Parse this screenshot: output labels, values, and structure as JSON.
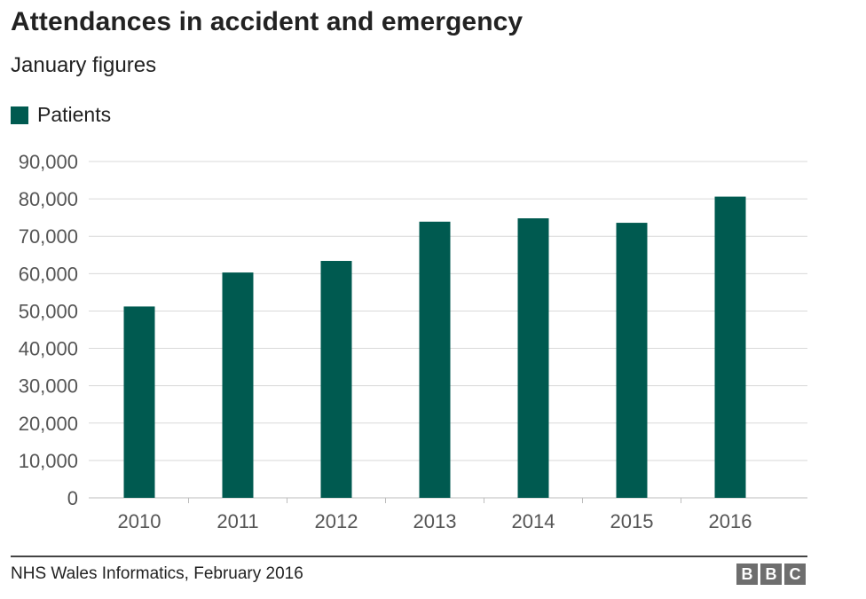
{
  "header": {
    "title": "Attendances in accident and emergency",
    "subtitle": "January figures"
  },
  "footer": {
    "source": "NHS Wales Informatics, February 2016",
    "logo_letters": [
      "B",
      "B",
      "C"
    ]
  },
  "colors": {
    "bar": "#005a50",
    "grid": "#d9d9d9",
    "logo": "#6e6e6e"
  },
  "chart_data": {
    "type": "bar",
    "title": "Attendances in accident and emergency",
    "subtitle": "January figures",
    "categories": [
      "2010",
      "2011",
      "2012",
      "2013",
      "2014",
      "2015",
      "2016"
    ],
    "series": [
      {
        "name": "Patients",
        "values": [
          51200,
          60300,
          63400,
          73900,
          74800,
          73600,
          80600
        ]
      }
    ],
    "ylim": [
      0,
      90000
    ],
    "yticks": [
      "0",
      "10,000",
      "20,000",
      "30,000",
      "40,000",
      "50,000",
      "60,000",
      "70,000",
      "80,000",
      "90,000"
    ],
    "ytick_values": [
      0,
      10000,
      20000,
      30000,
      40000,
      50000,
      60000,
      70000,
      80000,
      90000
    ],
    "grid": true,
    "legend": "top-left",
    "xlabel": "",
    "ylabel": ""
  }
}
